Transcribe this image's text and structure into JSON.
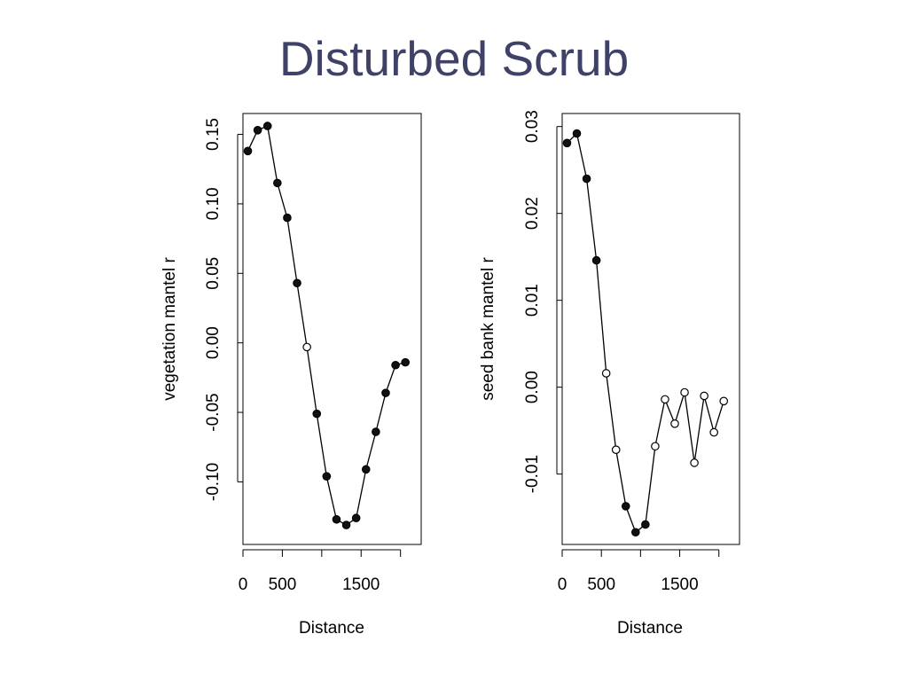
{
  "slide": {
    "title": "Disturbed Scrub",
    "title_color": "#3f4266"
  },
  "chart_data": [
    {
      "type": "line",
      "xlabel": "Distance",
      "ylabel": "vegetation mantel r",
      "xlim": [
        0,
        2150
      ],
      "ylim": [
        -0.145,
        0.165
      ],
      "x_ticks": [
        0,
        500,
        1000,
        1500,
        2000
      ],
      "x_tick_labels": [
        "0",
        "500",
        "",
        "1500",
        ""
      ],
      "y_ticks": [
        -0.1,
        -0.05,
        0.0,
        0.05,
        0.1,
        0.15
      ],
      "y_tick_labels": [
        "-0.10",
        "-0.05",
        "0.00",
        "0.05",
        "0.10",
        "0.15"
      ],
      "grid": false,
      "series": [
        {
          "x": [
            62,
            187,
            312,
            437,
            562,
            687,
            812,
            937,
            1062,
            1187,
            1312,
            1437,
            1562,
            1687,
            1812,
            1937,
            2062
          ],
          "y": [
            0.138,
            0.153,
            0.156,
            0.115,
            0.09,
            0.043,
            -0.003,
            -0.051,
            -0.096,
            -0.127,
            -0.131,
            -0.126,
            -0.091,
            -0.064,
            -0.036,
            -0.016,
            -0.014
          ],
          "filled": [
            true,
            true,
            true,
            true,
            true,
            true,
            false,
            true,
            true,
            true,
            true,
            true,
            true,
            true,
            true,
            true,
            true
          ]
        }
      ]
    },
    {
      "type": "line",
      "xlabel": "Distance",
      "ylabel": "seed bank mantel r",
      "xlim": [
        0,
        2150
      ],
      "ylim": [
        -0.0181,
        0.0315
      ],
      "x_ticks": [
        0,
        500,
        1000,
        1500,
        2000
      ],
      "x_tick_labels": [
        "0",
        "500",
        "",
        "1500",
        ""
      ],
      "y_ticks": [
        -0.01,
        0.0,
        0.01,
        0.02,
        0.03
      ],
      "y_tick_labels": [
        "-0.01",
        "0.00",
        "0.01",
        "0.02",
        "0.03"
      ],
      "grid": false,
      "series": [
        {
          "x": [
            62,
            187,
            312,
            437,
            562,
            687,
            812,
            937,
            1062,
            1187,
            1312,
            1437,
            1562,
            1687,
            1812,
            1937,
            2062
          ],
          "y": [
            0.0281,
            0.0292,
            0.024,
            0.0146,
            0.0016,
            -0.0072,
            -0.0137,
            -0.0167,
            -0.0158,
            -0.0068,
            -0.0014,
            -0.0042,
            -0.0006,
            -0.0087,
            -0.001,
            -0.0052,
            -0.0016
          ],
          "filled": [
            true,
            true,
            true,
            true,
            false,
            false,
            true,
            true,
            true,
            false,
            false,
            false,
            false,
            false,
            false,
            false,
            false
          ]
        }
      ]
    }
  ]
}
